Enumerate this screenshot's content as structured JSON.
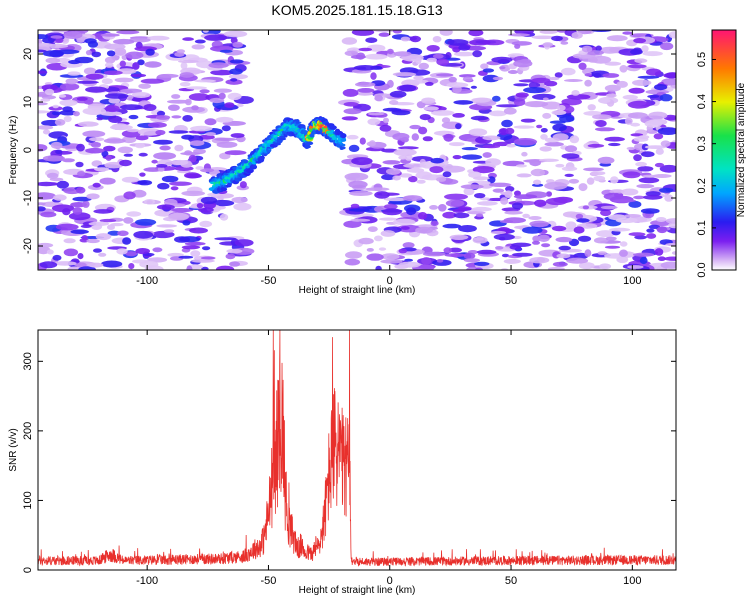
{
  "title": "KOM5.2025.181.15.18.G13",
  "chart_data": [
    {
      "type": "heatmap",
      "xlabel": "Height of straight line (km)",
      "ylabel": "Frequency (Hz)",
      "xlim": [
        -145,
        118
      ],
      "ylim": [
        -25,
        25
      ],
      "x_ticks": [
        -100,
        -50,
        0,
        50,
        100
      ],
      "y_ticks": [
        -20,
        -10,
        0,
        10,
        20
      ],
      "colorbar": {
        "label": "Normalized spectral amplitude",
        "range": [
          0,
          0.57
        ],
        "ticks": [
          0,
          0.1,
          0.2,
          0.3,
          0.4,
          0.5
        ]
      },
      "signal_ridge": {
        "x": [
          -73,
          -68,
          -63,
          -58,
          -53,
          -48,
          -45,
          -42,
          -38,
          -34,
          -31,
          -28,
          -25,
          -22,
          -19
        ],
        "y": [
          -7.5,
          -6.5,
          -5,
          -3,
          -0.5,
          2,
          3.5,
          5,
          4.5,
          2,
          5,
          5,
          4,
          2.5,
          1.5
        ]
      },
      "blank_region_x": [
        -60,
        -17
      ],
      "noise_level": 0.07
    },
    {
      "type": "line",
      "xlabel": "Height of straight line (km)",
      "ylabel": "SNR (v/v)",
      "xlim": [
        -145,
        118
      ],
      "ylim": [
        0,
        345
      ],
      "x_ticks": [
        -100,
        -50,
        0,
        50,
        100
      ],
      "y_ticks": [
        0,
        100,
        200,
        300
      ],
      "series": [
        {
          "color": "#e8302c",
          "envelope_x": [
            -145,
            -120,
            -115,
            -110,
            -70,
            -60,
            -55,
            -52,
            -50,
            -48,
            -46,
            -45,
            -44,
            -43,
            -42,
            -40,
            -38,
            -35,
            -32,
            -29,
            -27,
            -25,
            -23,
            -21,
            -19,
            -18,
            -16.5,
            -16,
            -10,
            50,
            118
          ],
          "envelope_y": [
            15,
            15,
            25,
            15,
            18,
            22,
            35,
            60,
            110,
            190,
            260,
            310,
            280,
            150,
            100,
            70,
            45,
            30,
            25,
            50,
            100,
            190,
            245,
            240,
            200,
            210,
            210,
            15,
            13,
            15,
            16
          ]
        }
      ]
    }
  ]
}
